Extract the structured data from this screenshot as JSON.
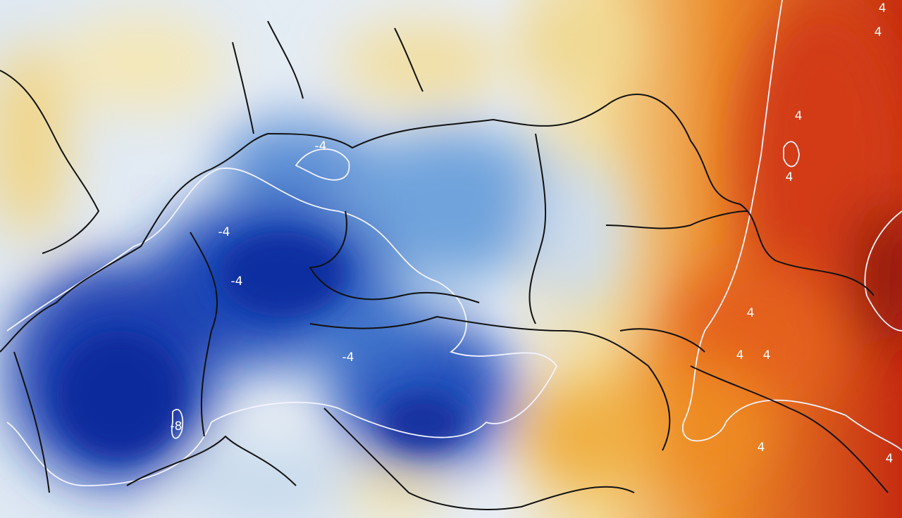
{
  "contour_labels": [
    "4",
    "4",
    "-4",
    "-4",
    "-4",
    "4",
    "4",
    "-4",
    "4",
    "4",
    "4",
    "-8",
    "4",
    "4"
  ]
}
